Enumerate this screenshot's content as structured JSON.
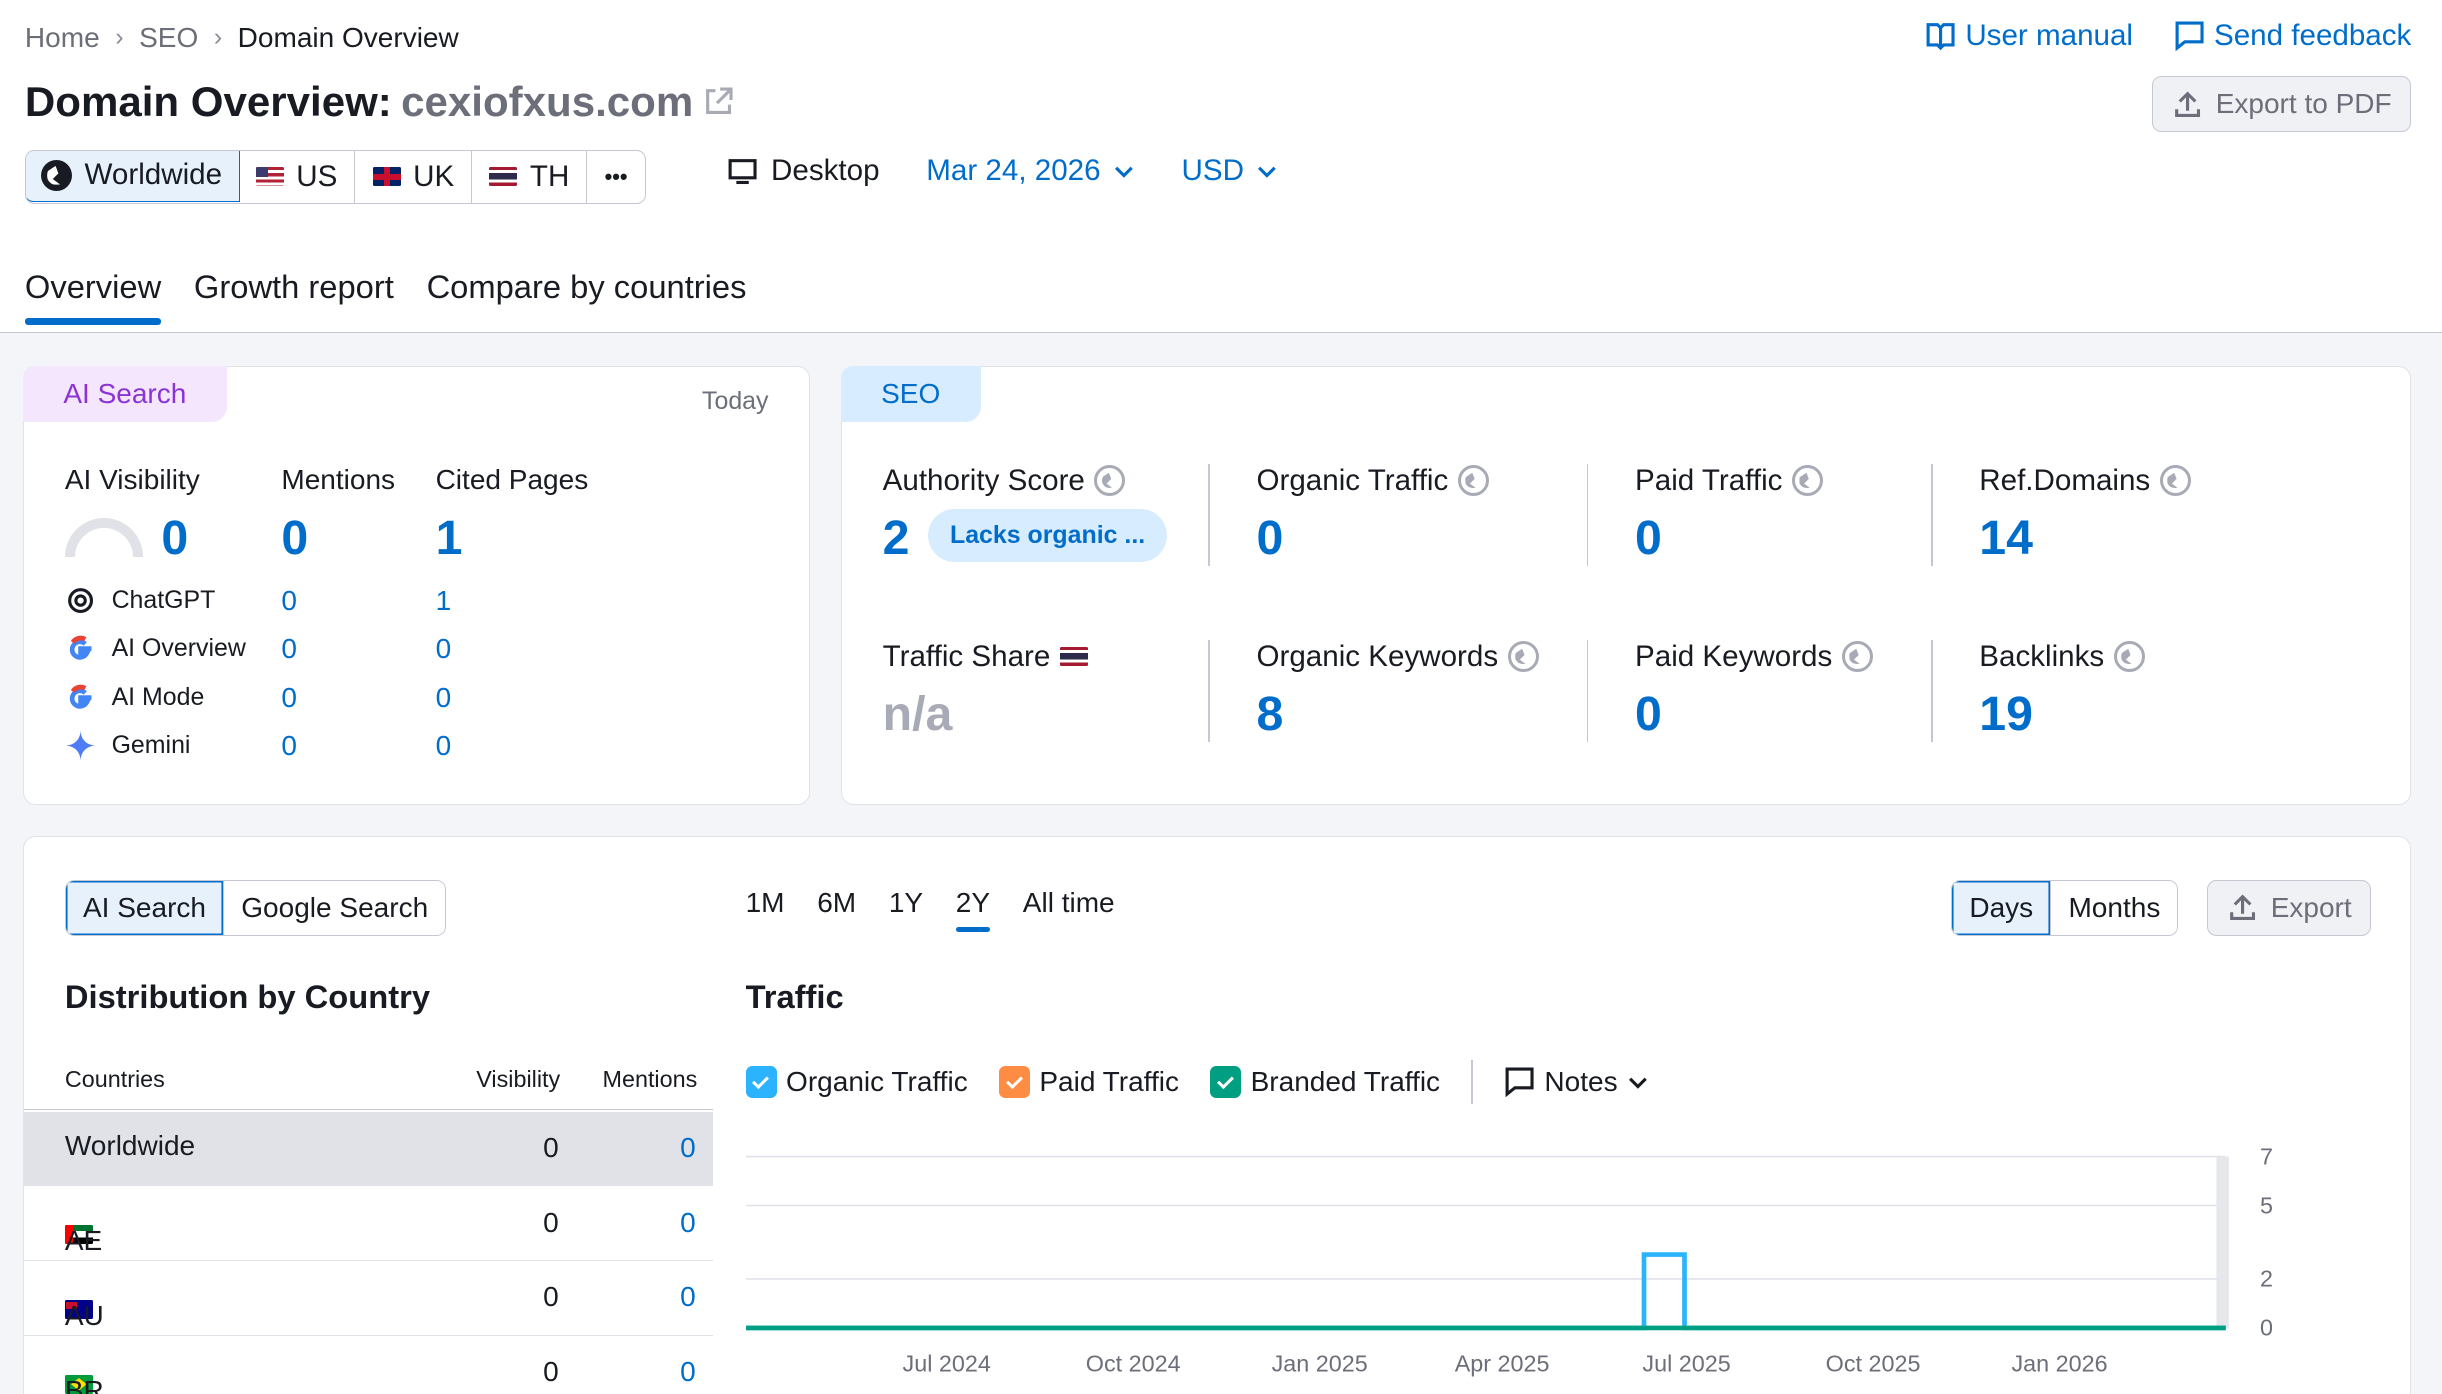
{
  "breadcrumb": [
    "Home",
    "SEO",
    "Domain Overview"
  ],
  "top_links": {
    "manual": "User manual",
    "feedback": "Send feedback"
  },
  "title": {
    "prefix": "Domain Overview:",
    "domain": "cexiofxus.com"
  },
  "export_pdf": "Export to PDF",
  "regions": [
    {
      "label": "Worldwide",
      "icon": "globe-icon"
    },
    {
      "label": "US",
      "icon": "us-flag-icon"
    },
    {
      "label": "UK",
      "icon": "uk-flag-icon"
    },
    {
      "label": "TH",
      "icon": "th-flag-icon"
    }
  ],
  "more_label": "•••",
  "device": "Desktop",
  "date": "Mar 24, 2026",
  "currency": "USD",
  "tabs": [
    "Overview",
    "Growth report",
    "Compare by countries"
  ],
  "ai_card": {
    "badge": "AI Search",
    "today": "Today",
    "headers": [
      "AI Visibility",
      "Mentions",
      "Cited Pages"
    ],
    "totals": {
      "visibility": "0",
      "mentions": "0",
      "cited": "1"
    },
    "rows": [
      {
        "name": "ChatGPT",
        "icon": "chatgpt-icon",
        "mentions": "0",
        "cited": "1"
      },
      {
        "name": "AI Overview",
        "icon": "google-icon",
        "mentions": "0",
        "cited": "0"
      },
      {
        "name": "AI Mode",
        "icon": "google-icon",
        "mentions": "0",
        "cited": "0"
      },
      {
        "name": "Gemini",
        "icon": "gemini-icon",
        "mentions": "0",
        "cited": "0"
      }
    ]
  },
  "seo_card": {
    "badge": "SEO",
    "metrics": [
      {
        "label": "Authority Score",
        "value": "2",
        "pill": "Lacks organic ..."
      },
      {
        "label": "Organic Traffic",
        "value": "0"
      },
      {
        "label": "Paid Traffic",
        "value": "0"
      },
      {
        "label": "Ref.Domains",
        "value": "14"
      },
      {
        "label": "Traffic Share",
        "value": "n/a"
      },
      {
        "label": "Organic Keywords",
        "value": "8"
      },
      {
        "label": "Paid Keywords",
        "value": "0"
      },
      {
        "label": "Backlinks",
        "value": "19"
      }
    ]
  },
  "bottom": {
    "search_toggle": [
      "AI Search",
      "Google Search"
    ],
    "periods": [
      "1M",
      "6M",
      "1Y",
      "2Y",
      "All time"
    ],
    "granularity": [
      "Days",
      "Months"
    ],
    "export": "Export",
    "dist_title": "Distribution by Country",
    "traffic_title": "Traffic",
    "table_headers": [
      "Countries",
      "Visibility",
      "Mentions"
    ],
    "table_rows": [
      {
        "country": "Worldwide",
        "visibility": "0",
        "mentions": "0"
      },
      {
        "country": "AE",
        "visibility": "0",
        "mentions": "0"
      },
      {
        "country": "AU",
        "visibility": "0",
        "mentions": "0"
      },
      {
        "country": "BR",
        "visibility": "0",
        "mentions": "0"
      }
    ],
    "legend": [
      "Organic Traffic",
      "Paid Traffic",
      "Branded Traffic"
    ],
    "notes": "Notes"
  },
  "colors": {
    "accent": "#006dca",
    "organic": "#2bb3ff",
    "paid": "#ff8c43",
    "branded": "#009f81",
    "ai_badge": "#8c34d3"
  },
  "chart_data": {
    "type": "line",
    "x_ticks": [
      "Jul 2024",
      "Oct 2024",
      "Jan 2025",
      "Apr 2025",
      "Jul 2025",
      "Oct 2025",
      "Jan 2026"
    ],
    "y_ticks": [
      0,
      2,
      5,
      7
    ],
    "ylim": [
      0,
      7
    ],
    "series": [
      {
        "name": "Organic Traffic",
        "color": "#2bb3ff",
        "points": [
          [
            "2024-03-24",
            0
          ],
          [
            "2025-06-10",
            0
          ],
          [
            "2025-06-10",
            3
          ],
          [
            "2025-06-30",
            3
          ],
          [
            "2025-06-30",
            0
          ],
          [
            "2026-03-24",
            0
          ]
        ]
      },
      {
        "name": "Branded Traffic",
        "color": "#009f81",
        "points": [
          [
            "2024-03-24",
            0
          ],
          [
            "2026-03-24",
            0
          ]
        ]
      }
    ]
  }
}
